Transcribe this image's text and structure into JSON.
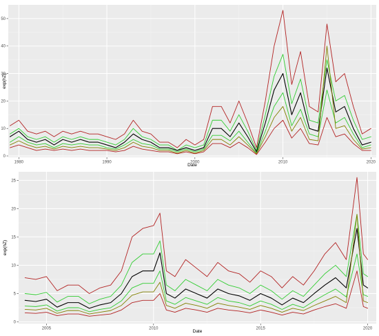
{
  "chart_data": [
    {
      "type": "line",
      "xlabel": "Date",
      "ylabel": "exp(hZ)",
      "xlim": [
        1978.8,
        2020.6
      ],
      "ylim": [
        -0.5,
        55
      ],
      "x_ticks": [
        1980,
        1990,
        2000,
        2010,
        2020
      ],
      "y_ticks": [
        0,
        10,
        20,
        30,
        40,
        50
      ],
      "x": [
        1979,
        1980,
        1981,
        1982,
        1983,
        1984,
        1985,
        1986,
        1987,
        1988,
        1989,
        1990,
        1991,
        1992,
        1993,
        1994,
        1995,
        1996,
        1997,
        1998,
        1999,
        2000,
        2001,
        2002,
        2003,
        2004,
        2005,
        2006,
        2007,
        2008,
        2009,
        2010,
        2011,
        2012,
        2013,
        2014,
        2015,
        2016,
        2017,
        2018,
        2019,
        2020
      ],
      "series": [
        {
          "color": "#b22222",
          "values": [
            11,
            13,
            9,
            8,
            9,
            7,
            9,
            8,
            9,
            8,
            8,
            7,
            6,
            8,
            13,
            9,
            8,
            5,
            5,
            3,
            6,
            4,
            6,
            18,
            18,
            12,
            20,
            12,
            3,
            20,
            40,
            53,
            26,
            38,
            18,
            16,
            48,
            27,
            30,
            18,
            8,
            10
          ]
        },
        {
          "color": "#32cd32",
          "values": [
            8,
            10,
            7,
            6,
            7,
            5,
            7,
            6,
            7,
            6,
            6,
            5,
            4,
            6,
            10,
            7,
            6,
            4,
            4,
            2,
            4,
            3,
            4,
            13,
            13,
            9,
            15,
            9,
            2,
            15,
            29,
            37,
            19,
            28,
            13,
            12,
            35,
            20,
            22,
            13,
            6,
            7
          ]
        },
        {
          "color": "#000000",
          "values": [
            7,
            9,
            6,
            5,
            6,
            4,
            6,
            5,
            6,
            5,
            5,
            4,
            3,
            5,
            8,
            6,
            5,
            3,
            3,
            2,
            3,
            2,
            3,
            10,
            10,
            7,
            12,
            7,
            1.5,
            12,
            24,
            30,
            15,
            23,
            10,
            9,
            32,
            16,
            18,
            10,
            4,
            5
          ]
        },
        {
          "color": "#32cd32",
          "values": [
            5,
            7,
            5,
            4,
            4.5,
            3,
            4.5,
            4,
            4.5,
            4,
            4,
            3,
            2.5,
            4,
            6,
            4.5,
            4,
            2.5,
            2.5,
            1.5,
            2.5,
            1.5,
            2.5,
            7.5,
            7.5,
            5.5,
            9,
            5,
            1,
            9,
            18,
            23,
            11,
            17,
            8,
            7,
            24,
            12,
            14,
            8,
            3,
            4
          ]
        },
        {
          "color": "#808000",
          "values": [
            4,
            5.5,
            4,
            3,
            3.5,
            2.5,
            3.5,
            3,
            3.5,
            3,
            3,
            2.5,
            2,
            3,
            5,
            3.5,
            3,
            2,
            2,
            1,
            2,
            1,
            2,
            6,
            6,
            4,
            7,
            4,
            0.8,
            7,
            14,
            18,
            9,
            14,
            6,
            5.5,
            40,
            10,
            11,
            6,
            2.5,
            3
          ]
        },
        {
          "color": "#b22222",
          "values": [
            3,
            4,
            3,
            2,
            2.5,
            2,
            2.5,
            2,
            2.5,
            2,
            2,
            2,
            1.5,
            2,
            3.5,
            2.5,
            2,
            1.5,
            1.5,
            0.8,
            1.5,
            0.8,
            1.5,
            4.5,
            4.5,
            3,
            5,
            3,
            0.5,
            5,
            10,
            13,
            6.5,
            10,
            4.5,
            4,
            14,
            7,
            8,
            4.5,
            2,
            2
          ]
        }
      ]
    },
    {
      "type": "line",
      "xlabel": "Date",
      "ylabel": "exp(hZ)",
      "xlim": [
        2003.7,
        2020.4
      ],
      "ylim": [
        -0.3,
        26.5
      ],
      "x_ticks": [
        2005,
        2010,
        2015,
        2020
      ],
      "y_ticks": [
        0,
        5,
        10,
        15,
        20,
        25
      ],
      "x": [
        2004,
        2004.5,
        2005,
        2005.5,
        2006,
        2006.5,
        2007,
        2007.5,
        2008,
        2008.5,
        2009,
        2009.5,
        2010,
        2010.3,
        2010.6,
        2011,
        2011.5,
        2012,
        2012.5,
        2013,
        2013.5,
        2014,
        2014.5,
        2015,
        2015.5,
        2016,
        2016.5,
        2017,
        2017.5,
        2018,
        2018.5,
        2019,
        2019.5,
        2019.8,
        2020
      ],
      "series": [
        {
          "color": "#b22222",
          "values": [
            7.8,
            7.5,
            8,
            5.5,
            6.5,
            6.5,
            5,
            6,
            6.5,
            9,
            15,
            16.5,
            17,
            19.2,
            9,
            8,
            11,
            9.5,
            8,
            10.5,
            9,
            8.5,
            7,
            9,
            8,
            6,
            8,
            6.5,
            9,
            12,
            14,
            11,
            25.5,
            12,
            11
          ]
        },
        {
          "color": "#32cd32",
          "values": [
            5,
            4.8,
            5.2,
            3.5,
            4.5,
            4.5,
            3.2,
            4,
            4.5,
            6.5,
            10.5,
            12,
            12,
            14.3,
            6.5,
            5.5,
            7.5,
            6.5,
            5.5,
            7.5,
            6.5,
            6,
            5,
            6.5,
            5.5,
            4,
            5.5,
            4.5,
            6.5,
            8.5,
            10,
            8,
            19,
            8.5,
            8
          ]
        },
        {
          "color": "#000000",
          "values": [
            3.8,
            3.6,
            4,
            2.6,
            3.4,
            3.4,
            2.4,
            3,
            3.4,
            5,
            8,
            9,
            9,
            12.2,
            5,
            4.2,
            5.8,
            5,
            4.2,
            5.8,
            5,
            4.6,
            3.8,
            5,
            4.2,
            3,
            4.2,
            3.4,
            5,
            6.5,
            7.8,
            6,
            16.5,
            6.5,
            6
          ]
        },
        {
          "color": "#32cd32",
          "values": [
            2.8,
            2.7,
            3,
            1.9,
            2.5,
            2.5,
            1.8,
            2.2,
            2.5,
            3.7,
            6,
            6.8,
            6.8,
            9,
            3.7,
            3.1,
            4.3,
            3.7,
            3.1,
            4.3,
            3.7,
            3.4,
            2.8,
            3.7,
            3.1,
            2.2,
            3.1,
            2.5,
            3.7,
            4.8,
            5.8,
            4.4,
            12,
            4.8,
            4.5
          ]
        },
        {
          "color": "#808000",
          "values": [
            2.2,
            2.1,
            2.4,
            1.5,
            2,
            2,
            1.4,
            1.7,
            2,
            2.9,
            4.7,
            5.3,
            5.3,
            7,
            2.9,
            2.4,
            3.3,
            2.9,
            2.4,
            3.3,
            2.9,
            2.6,
            2.2,
            2.9,
            2.4,
            1.7,
            2.4,
            2,
            2.9,
            3.7,
            4.5,
            3.4,
            19,
            3.7,
            3.4
          ]
        },
        {
          "color": "#b22222",
          "values": [
            1.6,
            1.5,
            1.7,
            1.1,
            1.4,
            1.4,
            1,
            1.2,
            1.4,
            2.1,
            3.4,
            3.8,
            3.8,
            5,
            2.1,
            1.7,
            2.4,
            2.1,
            1.7,
            2.4,
            2.1,
            1.9,
            1.6,
            2.1,
            1.7,
            1.2,
            1.7,
            1.4,
            2.1,
            2.7,
            3.2,
            2.4,
            9,
            2.7,
            2.4
          ]
        }
      ]
    }
  ]
}
